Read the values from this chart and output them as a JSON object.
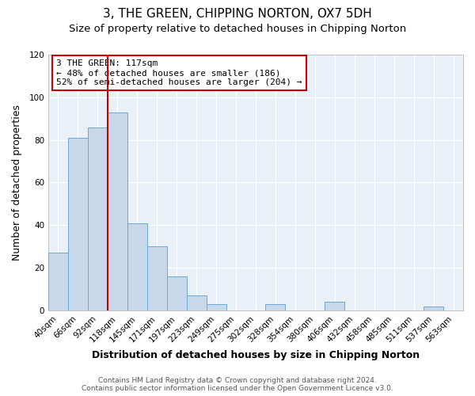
{
  "title": "3, THE GREEN, CHIPPING NORTON, OX7 5DH",
  "subtitle": "Size of property relative to detached houses in Chipping Norton",
  "xlabel": "Distribution of detached houses by size in Chipping Norton",
  "ylabel": "Number of detached properties",
  "bin_labels": [
    "40sqm",
    "66sqm",
    "92sqm",
    "118sqm",
    "145sqm",
    "171sqm",
    "197sqm",
    "223sqm",
    "249sqm",
    "275sqm",
    "302sqm",
    "328sqm",
    "354sqm",
    "380sqm",
    "406sqm",
    "432sqm",
    "458sqm",
    "485sqm",
    "511sqm",
    "537sqm",
    "563sqm"
  ],
  "bar_values": [
    27,
    81,
    86,
    93,
    41,
    30,
    16,
    7,
    3,
    0,
    0,
    3,
    0,
    0,
    4,
    0,
    0,
    0,
    0,
    2,
    0
  ],
  "bar_color": "#c8d8ea",
  "bar_edge_color": "#6aaad4",
  "marker_bin_index": 3,
  "marker_line_color": "#cc0000",
  "annotation_text": "3 THE GREEN: 117sqm\n← 48% of detached houses are smaller (186)\n52% of semi-detached houses are larger (204) →",
  "annotation_box_color": "#ffffff",
  "annotation_box_edge_color": "#cc0000",
  "ylim": [
    0,
    120
  ],
  "yticks": [
    0,
    20,
    40,
    60,
    80,
    100,
    120
  ],
  "footer_line1": "Contains HM Land Registry data © Crown copyright and database right 2024.",
  "footer_line2": "Contains public sector information licensed under the Open Government Licence v3.0.",
  "background_color": "#ffffff",
  "plot_background_color": "#eaf0f8",
  "title_fontsize": 11,
  "subtitle_fontsize": 9.5,
  "axis_label_fontsize": 9,
  "tick_fontsize": 7.5,
  "footer_fontsize": 6.5,
  "annotation_fontsize": 8
}
